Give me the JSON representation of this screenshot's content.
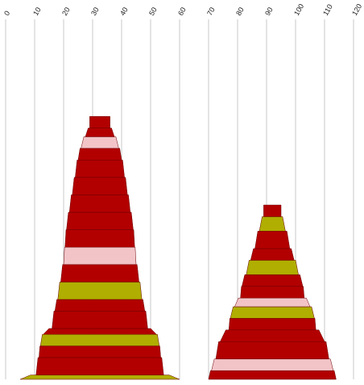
{
  "chart_data": {
    "type": "bar",
    "subtype": "stacked-cone",
    "title": "",
    "xlabel": "",
    "ylabel": "",
    "x_axis": {
      "ticks": [
        "0",
        "10",
        "20",
        "30",
        "40",
        "50",
        "60",
        "70",
        "80",
        "90",
        "100",
        "110",
        "120"
      ],
      "range": [
        0,
        120
      ],
      "position": "top",
      "tick_label_rotation": -60,
      "grid": true
    },
    "legend": "none",
    "colors": {
      "dark_red": "#b20000",
      "pink": "#f2c4c8",
      "olive": "#b0ae00",
      "outline": "#6b0000",
      "grid": "#c8c8c8"
    },
    "stacks": [
      {
        "name": "",
        "center": 32.5,
        "segments": [
          {
            "w": 55,
            "h": 1.5,
            "color": "olive"
          },
          {
            "w": 44,
            "h": 6,
            "color": "dark_red"
          },
          {
            "w": 42,
            "h": 4,
            "color": "dark_red"
          },
          {
            "w": 41,
            "h": 4,
            "color": "olive"
          },
          {
            "w": 39,
            "h": 2,
            "color": "dark_red"
          },
          {
            "w": 33,
            "h": 6,
            "color": "dark_red"
          },
          {
            "w": 31,
            "h": 4,
            "color": "dark_red"
          },
          {
            "w": 29,
            "h": 6,
            "color": "olive"
          },
          {
            "w": 27,
            "h": 6,
            "color": "dark_red"
          },
          {
            "w": 25,
            "h": 6,
            "color": "pink"
          },
          {
            "w": 24,
            "h": 6,
            "color": "dark_red"
          },
          {
            "w": 23,
            "h": 6,
            "color": "dark_red"
          },
          {
            "w": 21,
            "h": 6,
            "color": "dark_red"
          },
          {
            "w": 19,
            "h": 6,
            "color": "dark_red"
          },
          {
            "w": 17,
            "h": 6,
            "color": "dark_red"
          },
          {
            "w": 15,
            "h": 4,
            "color": "dark_red"
          },
          {
            "w": 13,
            "h": 4,
            "color": "pink"
          },
          {
            "w": 10,
            "h": 3,
            "color": "dark_red"
          },
          {
            "w": 7,
            "h": 4,
            "color": "dark_red"
          }
        ]
      },
      {
        "name": "",
        "center": 92,
        "segments": [
          {
            "w": 44,
            "h": 3,
            "color": "dark_red"
          },
          {
            "w": 42,
            "h": 4,
            "color": "pink"
          },
          {
            "w": 39,
            "h": 6,
            "color": "dark_red"
          },
          {
            "w": 36,
            "h": 4,
            "color": "dark_red"
          },
          {
            "w": 30,
            "h": 4,
            "color": "dark_red"
          },
          {
            "w": 29,
            "h": 4,
            "color": "olive"
          },
          {
            "w": 26,
            "h": 3,
            "color": "pink"
          },
          {
            "w": 22,
            "h": 4,
            "color": "dark_red"
          },
          {
            "w": 21,
            "h": 4,
            "color": "dark_red"
          },
          {
            "w": 18,
            "h": 5,
            "color": "olive"
          },
          {
            "w": 15,
            "h": 4,
            "color": "dark_red"
          },
          {
            "w": 12,
            "h": 6,
            "color": "dark_red"
          },
          {
            "w": 9,
            "h": 5,
            "color": "olive"
          },
          {
            "w": 6,
            "h": 4,
            "color": "dark_red"
          }
        ]
      }
    ]
  }
}
